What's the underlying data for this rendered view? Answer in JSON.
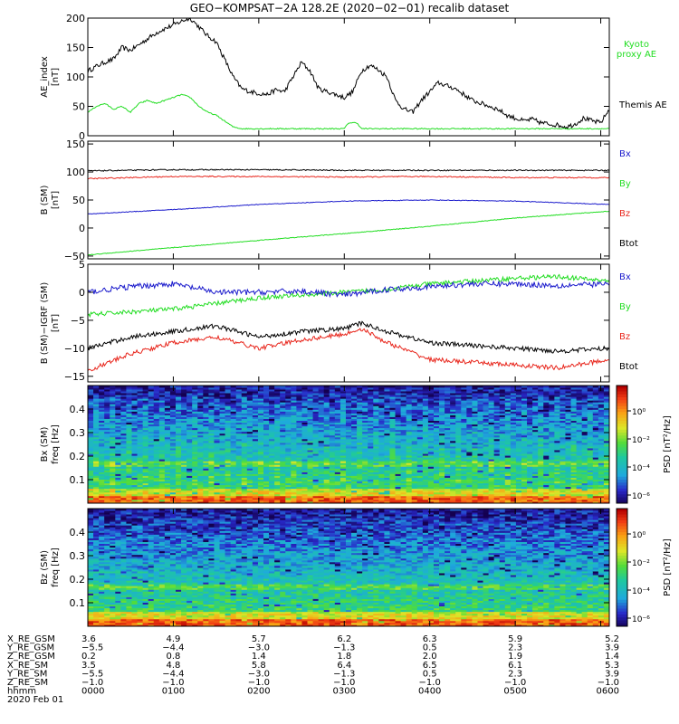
{
  "title": "GEO−KOMPSAT−2A 128.2E (2020−02−01) recalib dataset",
  "colors": {
    "black": "#000000",
    "red": "#e8261c",
    "green": "#22dd22",
    "blue": "#1a1acc",
    "kyoto": "#22dd22"
  },
  "chart_data": [
    {
      "type": "line",
      "ylabel": "AE_index",
      "yunit": "[nT]",
      "ylim": [
        0,
        200
      ],
      "yticks": [
        "0",
        "50",
        "100",
        "150",
        "200"
      ],
      "xlim_hours": [
        0,
        6.1
      ],
      "legend": [
        "Kyoto",
        "proxy AE",
        "Themis AE"
      ],
      "series": [
        {
          "name": "Themis AE",
          "color": "black",
          "x": [
            0,
            0.1,
            0.2,
            0.3,
            0.4,
            0.5,
            0.6,
            0.7,
            0.8,
            0.9,
            1.0,
            1.1,
            1.2,
            1.3,
            1.4,
            1.5,
            1.6,
            1.7,
            1.8,
            1.9,
            2.0,
            2.1,
            2.2,
            2.3,
            2.4,
            2.5,
            2.6,
            2.7,
            2.8,
            2.9,
            3.0,
            3.1,
            3.2,
            3.3,
            3.4,
            3.5,
            3.6,
            3.7,
            3.8,
            3.9,
            4.0,
            4.1,
            4.2,
            4.3,
            4.4,
            4.5,
            4.6,
            4.7,
            4.8,
            4.9,
            5.0,
            5.1,
            5.2,
            5.3,
            5.4,
            5.5,
            5.6,
            5.7,
            5.8,
            5.9,
            6.0,
            6.1
          ],
          "y": [
            110,
            118,
            125,
            130,
            150,
            145,
            155,
            165,
            175,
            182,
            188,
            195,
            200,
            185,
            170,
            160,
            130,
            100,
            80,
            75,
            72,
            70,
            78,
            75,
            100,
            125,
            110,
            80,
            75,
            70,
            65,
            75,
            110,
            120,
            112,
            100,
            60,
            45,
            40,
            60,
            75,
            90,
            85,
            80,
            70,
            60,
            55,
            50,
            45,
            35,
            30,
            25,
            28,
            22,
            20,
            18,
            15,
            20,
            30,
            25,
            22,
            45
          ],
          "noise": 4
        },
        {
          "name": "Kyoto proxy AE",
          "color": "green",
          "x": [
            0,
            0.1,
            0.2,
            0.3,
            0.4,
            0.5,
            0.6,
            0.7,
            0.8,
            0.9,
            1.0,
            1.1,
            1.2,
            1.3,
            1.4,
            1.5,
            1.6,
            1.7,
            1.8,
            1.9,
            2.0,
            2.1,
            2.2,
            2.3,
            2.4,
            2.5,
            3.0,
            3.05,
            3.15,
            3.2,
            3.5,
            4.0,
            4.5,
            5.0,
            5.5,
            6.1
          ],
          "y": [
            40,
            50,
            55,
            45,
            50,
            40,
            55,
            60,
            55,
            60,
            65,
            70,
            65,
            50,
            40,
            35,
            25,
            15,
            12,
            12,
            12,
            12,
            12,
            12,
            12,
            12,
            12,
            22,
            22,
            12,
            12,
            12,
            12,
            12,
            12,
            12
          ],
          "noise": 1
        }
      ]
    },
    {
      "type": "line",
      "ylabel": "B (SM)",
      "yunit": "[nT]",
      "ylim": [
        -55,
        155
      ],
      "yticks": [
        "−50",
        "0",
        "50",
        "100",
        "150"
      ],
      "legend": [
        "Bx",
        "By",
        "Bz",
        "Btot"
      ],
      "series": [
        {
          "name": "Btot",
          "color": "black",
          "x": [
            0,
            1,
            2,
            3,
            4,
            5,
            6.1
          ],
          "y": [
            102,
            104,
            104,
            103,
            103,
            103,
            103
          ],
          "noise": 1
        },
        {
          "name": "Bz",
          "color": "red",
          "x": [
            0,
            1,
            2,
            3,
            4,
            5,
            6.1
          ],
          "y": [
            88,
            92,
            92,
            91,
            92,
            90,
            90
          ],
          "noise": 1
        },
        {
          "name": "Bx",
          "color": "blue",
          "x": [
            0,
            1,
            2,
            3,
            4,
            5,
            6.1
          ],
          "y": [
            25,
            33,
            42,
            48,
            50,
            48,
            42
          ],
          "noise": 0.6
        },
        {
          "name": "By",
          "color": "green",
          "x": [
            0,
            1,
            2,
            3,
            4,
            5,
            6.1
          ],
          "y": [
            -48,
            -35,
            -22,
            -10,
            3,
            18,
            30
          ],
          "noise": 0.6
        }
      ]
    },
    {
      "type": "line",
      "ylabel": "B (SM)−IGRF (SM)",
      "yunit": "[nT]",
      "ylim": [
        -16,
        5
      ],
      "yticks": [
        "−15",
        "−10",
        "−5",
        "0",
        "5"
      ],
      "legend": [
        "Bx",
        "By",
        "Bz",
        "Btot"
      ],
      "series": [
        {
          "name": "By",
          "color": "green",
          "x": [
            0,
            0.5,
            1,
            1.5,
            2,
            2.5,
            3,
            3.5,
            4,
            4.5,
            5,
            5.5,
            6.1
          ],
          "y": [
            -4,
            -3.5,
            -3,
            -2,
            -1,
            -0.5,
            0,
            0.5,
            1.5,
            2,
            2.5,
            2.8,
            2
          ],
          "noise": 0.4
        },
        {
          "name": "Bx",
          "color": "blue",
          "x": [
            0,
            0.5,
            1,
            1.5,
            2,
            2.5,
            3,
            3.5,
            4,
            4.5,
            5,
            5.5,
            6.1
          ],
          "y": [
            0,
            1,
            1.5,
            0,
            0,
            0.2,
            -0.5,
            0.5,
            1,
            1.5,
            1.5,
            1.2,
            1.5
          ],
          "noise": 0.5
        },
        {
          "name": "Btot",
          "color": "black",
          "x": [
            0,
            0.5,
            1,
            1.5,
            2,
            2.5,
            3,
            3.2,
            3.5,
            4,
            4.5,
            5,
            5.5,
            6.1
          ],
          "y": [
            -10,
            -8,
            -7,
            -6,
            -8,
            -7,
            -6.5,
            -5.5,
            -7,
            -9,
            -9.5,
            -10,
            -10.5,
            -10
          ],
          "noise": 0.4
        },
        {
          "name": "Bz",
          "color": "red",
          "x": [
            0,
            0.5,
            1,
            1.5,
            2,
            2.5,
            3,
            3.2,
            3.5,
            4,
            4.5,
            5,
            5.5,
            6.1
          ],
          "y": [
            -14,
            -11,
            -9,
            -8,
            -10,
            -8.5,
            -7.5,
            -6.5,
            -9,
            -12,
            -12.5,
            -13,
            -13.5,
            -12
          ],
          "noise": 0.4
        }
      ]
    },
    {
      "type": "heatmap",
      "ylabel": "Bx (SM)",
      "yunit": "freq [Hz]",
      "ylim": [
        0,
        0.5
      ],
      "yticks": [
        "0.1",
        "0.2",
        "0.3",
        "0.4"
      ],
      "colorbar_label": "PSD [nT²/Hz]",
      "colorbar_ticks": [
        "10⁰",
        "10⁻²",
        "10⁻⁴",
        "10⁻⁶"
      ]
    },
    {
      "type": "heatmap",
      "ylabel": "Bz (SM)",
      "yunit": "freq [Hz]",
      "ylim": [
        0,
        0.5
      ],
      "yticks": [
        "0.1",
        "0.2",
        "0.3",
        "0.4"
      ],
      "colorbar_label": "PSD [nT²/Hz]",
      "colorbar_ticks": [
        "10⁰",
        "10⁻²",
        "10⁻⁴",
        "10⁻⁶"
      ]
    }
  ],
  "ephemeris": {
    "labels": [
      "X_RE_GSM",
      "Y_RE_GSM",
      "Z_RE_GSM",
      "X_RE_SM",
      "Y_RE_SM",
      "Z_RE_SM",
      "hhmm"
    ],
    "columns": [
      [
        "3.6",
        "−5.5",
        "0.2",
        "3.5",
        "−5.5",
        "−1.0",
        "0000"
      ],
      [
        "4.9",
        "−4.4",
        "0.8",
        "4.8",
        "−4.4",
        "−1.0",
        "0100"
      ],
      [
        "5.7",
        "−3.0",
        "1.4",
        "5.8",
        "−3.0",
        "−1.0",
        "0200"
      ],
      [
        "6.2",
        "−1.3",
        "1.8",
        "6.4",
        "−1.3",
        "−1.0",
        "0300"
      ],
      [
        "6.3",
        "0.5",
        "2.0",
        "6.5",
        "0.5",
        "−1.0",
        "0400"
      ],
      [
        "5.9",
        "2.3",
        "1.9",
        "6.1",
        "2.3",
        "−1.0",
        "0500"
      ],
      [
        "5.2",
        "3.9",
        "1.4",
        "5.3",
        "3.9",
        "−1.0",
        "0600"
      ]
    ],
    "date": "2020 Feb 01"
  }
}
